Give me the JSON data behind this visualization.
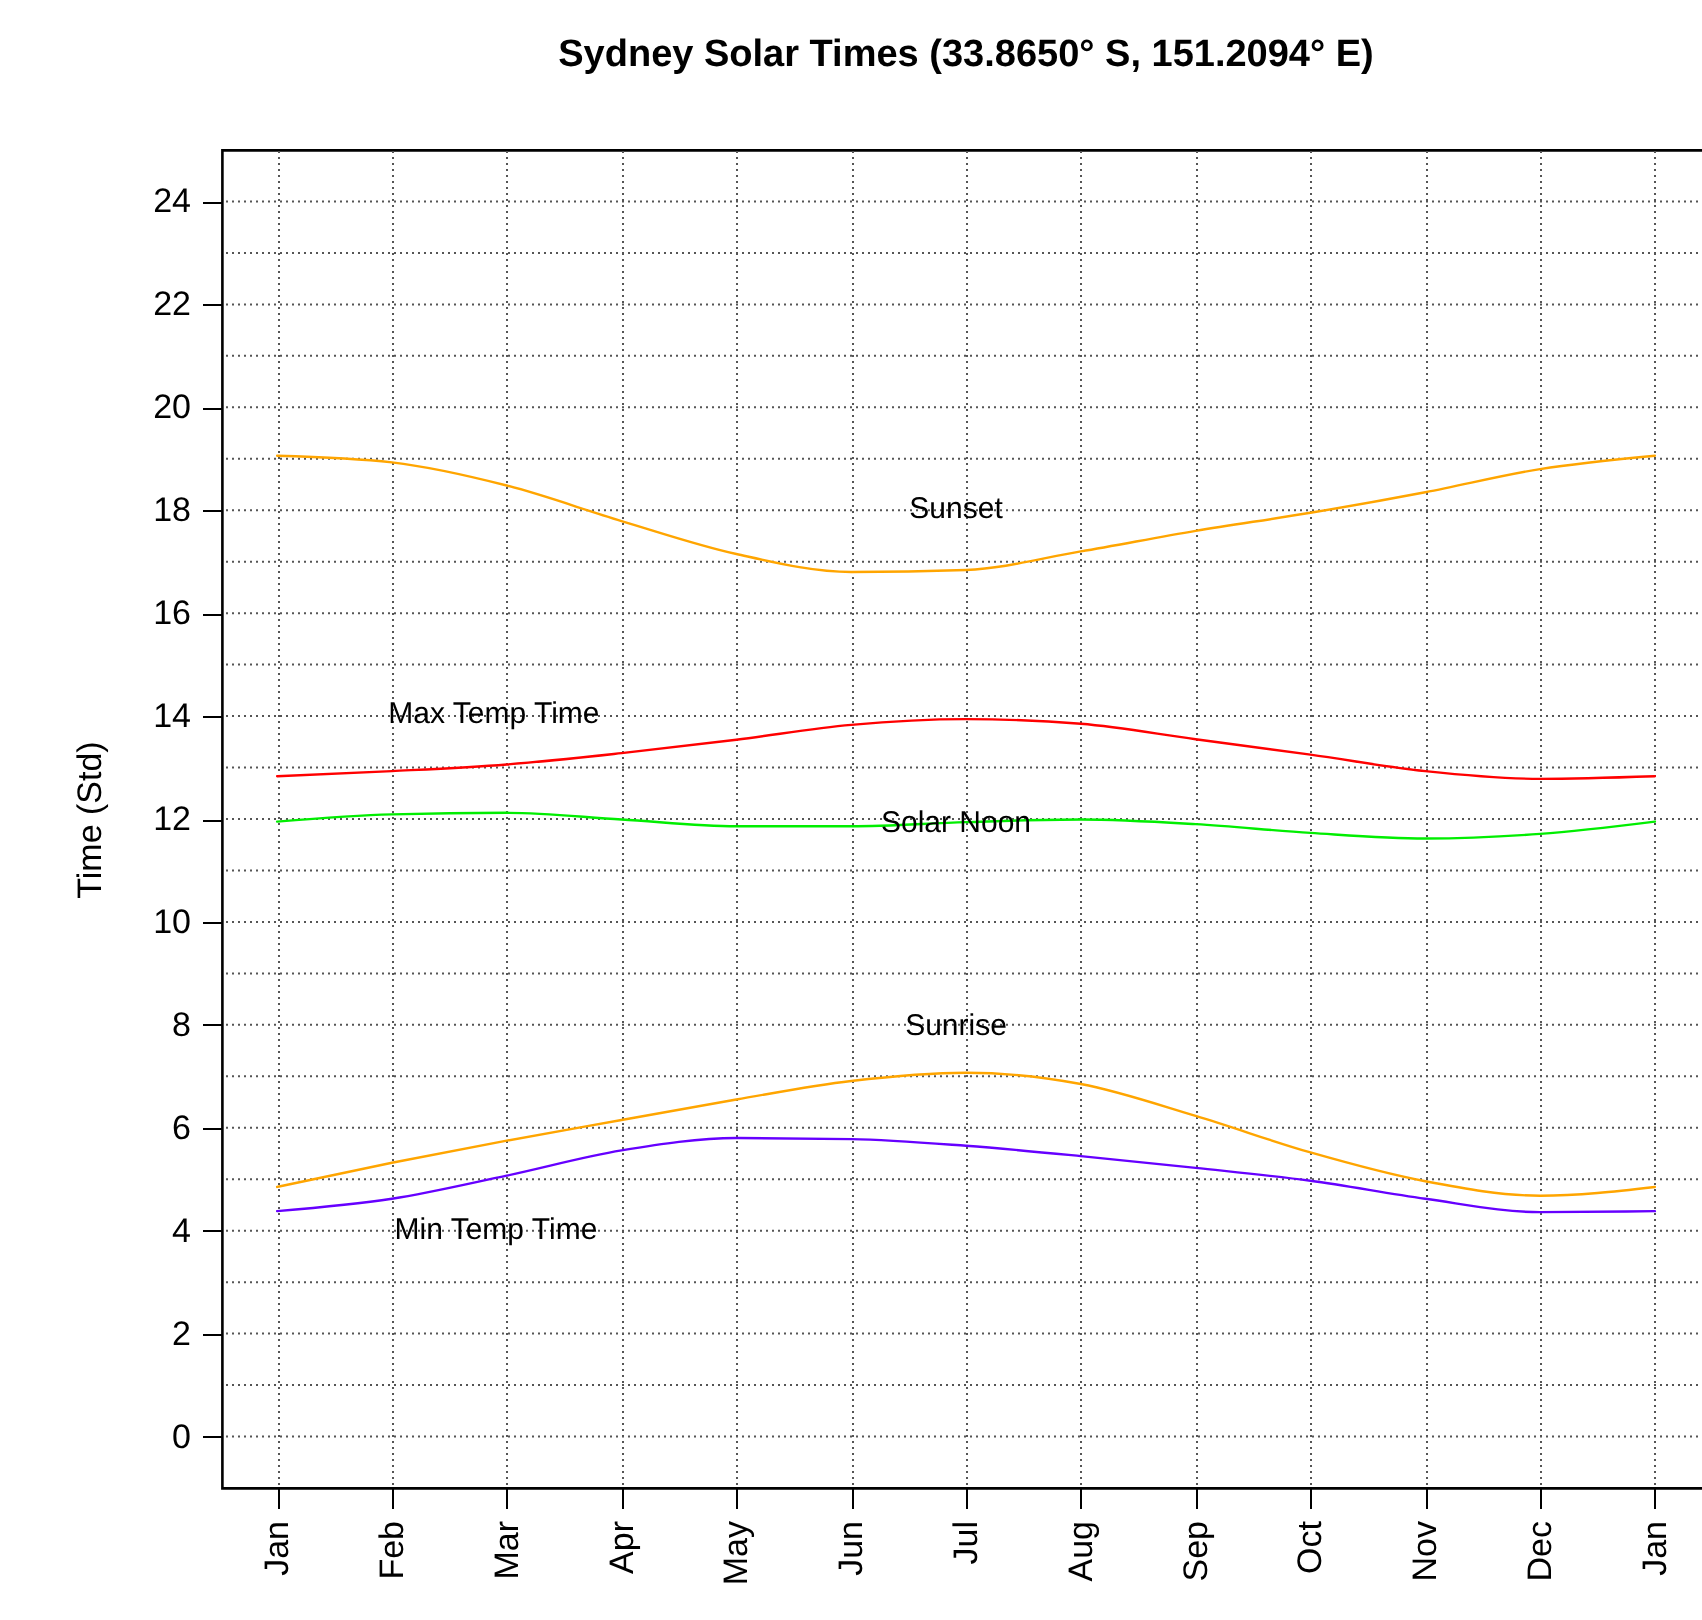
{
  "chart_data": {
    "type": "line",
    "title": "Sydney Solar Times (33.8650° S, 151.2094° E)",
    "ylabel": "Time (Std)",
    "categories": [
      "Jan",
      "Feb",
      "Mar",
      "Apr",
      "May",
      "Jun",
      "Jul",
      "Aug",
      "Sep",
      "Oct",
      "Nov",
      "Dec",
      "Jan"
    ],
    "ylim": [
      -1,
      25
    ],
    "yticks": [
      0,
      {
        "value": 1,
        "label": null
      },
      2,
      {
        "value": 3,
        "label": null
      },
      4,
      {
        "value": 5,
        "label": null
      },
      6,
      {
        "value": 7,
        "label": null
      },
      8,
      {
        "value": 9,
        "label": null
      },
      10,
      {
        "value": 11,
        "label": null
      },
      12,
      {
        "value": 13,
        "label": null
      },
      14,
      {
        "value": 15,
        "label": null
      },
      16,
      {
        "value": 17,
        "label": null
      },
      18,
      {
        "value": 19,
        "label": null
      },
      20,
      {
        "value": 21,
        "label": null
      },
      22,
      {
        "value": 23,
        "label": null
      },
      24
    ],
    "grid": true,
    "legend": false,
    "marker": "none",
    "line_style": "solid",
    "series": [
      {
        "name": "Sunset",
        "color": "#ffa500",
        "values": [
          19.06,
          18.93,
          18.48,
          17.79,
          17.15,
          16.8,
          16.84,
          17.2,
          17.6,
          17.95,
          18.35,
          18.8,
          19.06
        ]
      },
      {
        "name": "Max Temp Time",
        "color": "#ff0000",
        "values": [
          12.83,
          12.93,
          13.06,
          13.28,
          13.54,
          13.83,
          13.94,
          13.85,
          13.55,
          13.25,
          12.93,
          12.78,
          12.83
        ]
      },
      {
        "name": "Solar Noon",
        "color": "#00ee00",
        "values": [
          11.95,
          12.09,
          12.12,
          11.99,
          11.86,
          11.86,
          11.94,
          11.99,
          11.9,
          11.73,
          11.62,
          11.71,
          11.95
        ]
      },
      {
        "name": "Sunrise",
        "color": "#ffa500",
        "values": [
          4.85,
          5.32,
          5.75,
          6.15,
          6.55,
          6.91,
          7.07,
          6.85,
          6.23,
          5.52,
          4.96,
          4.68,
          4.85
        ]
      },
      {
        "name": "Min Temp Time",
        "color": "#6600ff",
        "values": [
          4.38,
          4.62,
          5.07,
          5.56,
          5.8,
          5.78,
          5.65,
          5.45,
          5.22,
          4.97,
          4.62,
          4.36,
          4.38
        ]
      }
    ]
  }
}
